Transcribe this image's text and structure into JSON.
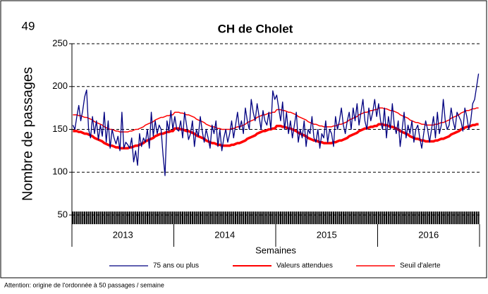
{
  "page_number": "49",
  "note": "Attention:  origine de l'ordonnée à 50 passages / semaine",
  "chart_data": {
    "type": "line",
    "title": "CH de Cholet",
    "y_label": "Nombre de passages",
    "x_label": "Semaines",
    "groups": [
      "2013",
      "2014",
      "2015",
      "2016"
    ],
    "ylim": [
      50,
      250
    ],
    "yticks": [
      50,
      100,
      150,
      200,
      250
    ],
    "grid": true,
    "series": [
      {
        "name": "75 ans ou plus",
        "color": "#000080",
        "width": 1.3,
        "values": [
          155,
          150,
          165,
          178,
          160,
          172,
          188,
          196,
          150,
          140,
          165,
          145,
          160,
          138,
          155,
          142,
          170,
          135,
          160,
          128,
          150,
          140,
          133,
          142,
          125,
          170,
          128,
          135,
          132,
          128,
          140,
          112,
          125,
          108,
          145,
          130,
          140,
          135,
          150,
          128,
          170,
          142,
          160,
          145,
          155,
          150,
          120,
          96,
          160,
          148,
          172,
          150,
          165,
          150,
          148,
          160,
          140,
          170,
          155,
          138,
          145,
          160,
          130,
          150,
          142,
          165,
          148,
          135,
          150,
          140,
          128,
          155,
          145,
          160,
          130,
          150,
          125,
          140,
          150,
          135,
          145,
          160,
          140,
          155,
          170,
          150,
          160,
          145,
          175,
          160,
          150,
          185,
          170,
          160,
          180,
          165,
          150,
          172,
          160,
          155,
          170,
          150,
          195,
          185,
          190,
          175,
          160,
          182,
          150,
          170,
          145,
          160,
          140,
          155,
          170,
          135,
          150,
          140,
          160,
          130,
          150,
          145,
          165,
          140,
          135,
          150,
          128,
          145,
          140,
          160,
          135,
          150,
          145,
          130,
          165,
          150,
          160,
          175,
          155,
          145,
          160,
          170,
          150,
          175,
          160,
          180,
          155,
          170,
          185,
          160,
          150,
          175,
          160,
          170,
          185,
          165,
          180,
          160,
          150,
          175,
          140,
          165,
          150,
          180,
          155,
          145,
          160,
          130,
          150,
          170,
          140,
          155,
          145,
          160,
          135,
          150,
          155,
          140,
          128,
          145,
          160,
          150,
          135,
          150,
          165,
          140,
          170,
          145,
          155,
          185,
          160,
          150,
          155,
          175,
          160,
          150,
          170,
          165,
          160,
          148,
          175,
          165,
          150,
          160,
          180,
          185,
          200,
          215
        ]
      },
      {
        "name": "Valeurs attendues",
        "color": "#ff0000",
        "width": 3.5,
        "values": [
          148,
          148,
          148,
          147,
          147,
          146,
          145,
          145,
          144,
          143,
          142,
          140,
          139,
          138,
          137,
          136,
          134,
          133,
          132,
          131,
          131,
          130,
          129,
          129,
          128,
          128,
          128,
          128,
          128,
          129,
          129,
          130,
          131,
          131,
          132,
          133,
          134,
          136,
          137,
          138,
          139,
          140,
          142,
          143,
          144,
          145,
          145,
          146,
          147,
          147,
          148,
          148,
          151,
          151,
          151,
          150,
          150,
          149,
          148,
          148,
          147,
          146,
          145,
          143,
          142,
          141,
          140,
          139,
          137,
          136,
          135,
          134,
          134,
          133,
          132,
          132,
          131,
          131,
          131,
          131,
          131,
          132,
          132,
          133,
          134,
          134,
          135,
          136,
          137,
          139,
          140,
          141,
          142,
          143,
          145,
          146,
          147,
          148,
          148,
          149,
          150,
          150,
          151,
          151,
          154,
          154,
          154,
          153,
          153,
          152,
          151,
          151,
          150,
          149,
          148,
          146,
          145,
          144,
          143,
          142,
          140,
          139,
          138,
          137,
          137,
          136,
          135,
          135,
          134,
          134,
          134,
          134,
          134,
          135,
          135,
          136,
          137,
          137,
          138,
          139,
          140,
          142,
          143,
          144,
          145,
          146,
          148,
          149,
          150,
          151,
          151,
          152,
          153,
          153,
          154,
          154,
          156,
          156,
          156,
          155,
          155,
          154,
          153,
          153,
          152,
          151,
          150,
          148,
          147,
          146,
          145,
          144,
          142,
          141,
          140,
          139,
          139,
          138,
          137,
          137,
          136,
          136,
          136,
          136,
          136,
          137,
          137,
          138,
          139,
          139,
          140,
          141,
          142,
          144,
          145,
          146,
          147,
          148,
          150,
          151,
          152,
          153,
          153,
          154,
          155,
          155,
          156,
          156
        ]
      },
      {
        "name": "Seuil d'alerte",
        "color": "#ff0000",
        "width": 1.5,
        "values": [
          167,
          167,
          167,
          166,
          166,
          165,
          164,
          164,
          163,
          162,
          161,
          159,
          158,
          157,
          156,
          155,
          153,
          152,
          151,
          150,
          150,
          149,
          148,
          148,
          147,
          147,
          147,
          147,
          147,
          148,
          148,
          149,
          150,
          150,
          151,
          152,
          153,
          155,
          156,
          157,
          158,
          159,
          161,
          162,
          163,
          164,
          164,
          165,
          166,
          166,
          167,
          167,
          170,
          170,
          170,
          169,
          169,
          168,
          167,
          167,
          166,
          165,
          164,
          162,
          161,
          160,
          159,
          158,
          156,
          155,
          154,
          153,
          153,
          152,
          151,
          151,
          150,
          150,
          150,
          150,
          150,
          151,
          151,
          152,
          153,
          153,
          154,
          155,
          156,
          158,
          159,
          160,
          161,
          162,
          164,
          165,
          166,
          167,
          167,
          168,
          169,
          169,
          170,
          170,
          173,
          173,
          173,
          172,
          172,
          171,
          170,
          170,
          169,
          168,
          167,
          165,
          164,
          163,
          162,
          161,
          159,
          158,
          157,
          156,
          156,
          155,
          154,
          154,
          153,
          153,
          153,
          153,
          153,
          154,
          154,
          155,
          156,
          156,
          157,
          158,
          159,
          161,
          162,
          163,
          164,
          165,
          167,
          168,
          169,
          170,
          170,
          171,
          172,
          172,
          173,
          173,
          175,
          175,
          175,
          174,
          174,
          173,
          172,
          172,
          171,
          170,
          169,
          167,
          166,
          165,
          164,
          163,
          161,
          160,
          159,
          158,
          158,
          157,
          156,
          156,
          155,
          155,
          155,
          155,
          155,
          156,
          156,
          157,
          158,
          158,
          159,
          160,
          161,
          163,
          164,
          165,
          166,
          167,
          169,
          170,
          171,
          172,
          172,
          173,
          174,
          174,
          175,
          175
        ]
      }
    ]
  }
}
